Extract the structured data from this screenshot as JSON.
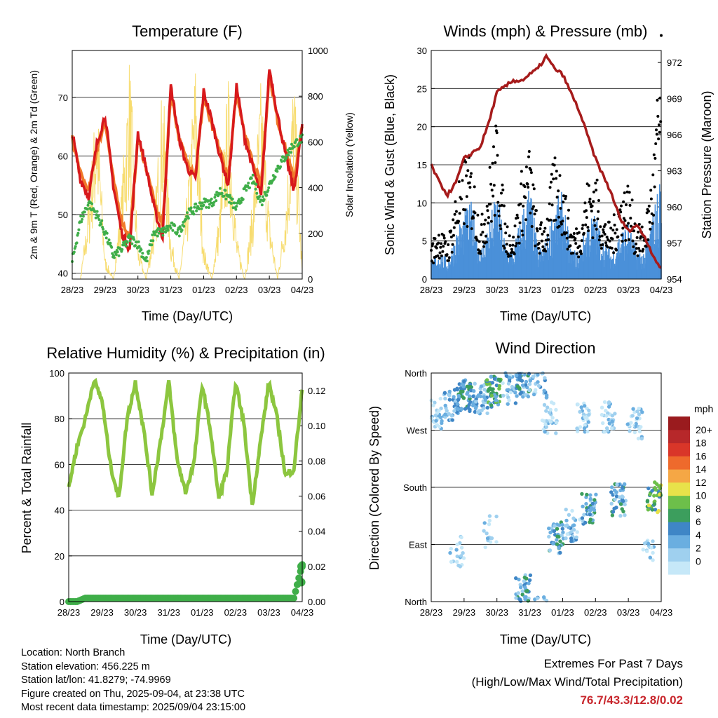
{
  "x_tick_labels": [
    "28/23",
    "29/23",
    "30/23",
    "31/23",
    "01/23",
    "02/23",
    "03/23",
    "04/23"
  ],
  "panels": {
    "temperature": {
      "title": "Temperature (F)",
      "xlabel": "Time (Day/UTC)",
      "ylabel": "2m & 9m T (Red, Orange) & 2m Td (Green)",
      "ylabel_right": "Solar Insolation (Yellow)",
      "yticks": [
        "40",
        "50",
        "60",
        "70"
      ],
      "yticks_right": [
        "0",
        "200",
        "400",
        "600",
        "800",
        "1000"
      ]
    },
    "winds": {
      "title": "Winds (mph) & Pressure (mb)",
      "xlabel": "Time (Day/UTC)",
      "ylabel": "Sonic Wind & Gust (Blue, Black)",
      "ylabel_right": "Station Pressure (Maroon)",
      "yticks": [
        "0",
        "5",
        "10",
        "15",
        "20",
        "25",
        "30"
      ],
      "yticks_right": [
        "954",
        "957",
        "960",
        "963",
        "966",
        "969",
        "972"
      ]
    },
    "humidity": {
      "title": "Relative Humidity (%) & Precipitation (in)",
      "xlabel": "Time (Day/UTC)",
      "ylabel": "Percent & Total Rainfall",
      "yticks": [
        "0",
        "20",
        "40",
        "60",
        "80",
        "100"
      ],
      "yticks_right": [
        "0.00",
        "0.02",
        "0.04",
        "0.06",
        "0.08",
        "0.10",
        "0.12"
      ]
    },
    "direction": {
      "title": "Wind Direction",
      "xlabel": "Time (Day/UTC)",
      "ylabel": "Direction (Colored By Speed)",
      "yticks": [
        "North",
        "East",
        "South",
        "West",
        "North"
      ],
      "legend_title": "mph",
      "legend_labels": [
        "0",
        "2",
        "4",
        "6",
        "8",
        "10",
        "12",
        "14",
        "16",
        "18",
        "20+"
      ]
    }
  },
  "colors": {
    "temp_2m": "#d7191c",
    "temp_9m": "#f07a2a",
    "dewpoint": "#3fae49",
    "solar": "#f7dc6f",
    "wind": "#4a90d9",
    "gust": "#000000",
    "pressure": "#a61b1b",
    "rh": "#8cc63f",
    "precip": "#3fae49",
    "legend_scale": [
      "#c6e8f8",
      "#9fd0ef",
      "#6aaee0",
      "#3f86c6",
      "#3c9e5d",
      "#6dbf4a",
      "#e8e24a",
      "#f5a745",
      "#ee6a2c",
      "#d93629",
      "#b7282a",
      "#9a1b1e"
    ]
  },
  "chart_data": [
    {
      "type": "line",
      "title": "Temperature (F)",
      "xlabel": "Time (Day/UTC)",
      "ylabel": "2m & 9m T (Red, Orange) & 2m Td (Green)",
      "y2label": "Solar Insolation (Yellow)",
      "x_ticks": [
        "28/23",
        "29/23",
        "30/23",
        "31/23",
        "01/23",
        "02/23",
        "03/23",
        "04/23"
      ],
      "x": [
        0,
        0.25,
        0.5,
        0.75,
        1,
        1.25,
        1.5,
        1.75,
        2,
        2.25,
        2.5,
        2.75,
        3,
        3.25,
        3.5,
        3.75,
        4,
        4.25,
        4.5,
        4.75,
        5,
        5.25,
        5.5,
        5.75,
        6,
        6.25,
        6.5,
        6.75,
        7
      ],
      "ylim": [
        39,
        78
      ],
      "y2lim": [
        0,
        1000
      ],
      "series": [
        {
          "values": [
            64,
            56,
            53,
            62,
            67,
            55,
            47,
            44,
            64,
            58,
            51,
            46,
            72,
            63,
            58,
            56,
            71,
            66,
            60,
            55,
            72,
            63,
            58,
            53,
            75,
            67,
            60,
            54,
            65
          ]
        },
        {
          "values": [
            63,
            57,
            54,
            61,
            66,
            56,
            49,
            46,
            63,
            58,
            52,
            48,
            71,
            63,
            59,
            57,
            70,
            65,
            61,
            56,
            71,
            64,
            59,
            55,
            74,
            66,
            61,
            56,
            65
          ]
        },
        {
          "values": [
            42,
            49,
            52,
            50,
            47,
            43,
            44,
            46,
            45,
            42,
            47,
            47,
            48,
            47,
            50,
            51,
            52,
            52,
            54,
            53,
            51,
            54,
            56,
            52,
            55,
            58,
            60,
            62,
            63
          ]
        },
        {
          "values": [
            0,
            0,
            350,
            850,
            100,
            0,
            400,
            1020,
            150,
            0,
            300,
            900,
            200,
            0,
            380,
            980,
            150,
            0,
            350,
            900,
            200,
            0,
            380,
            900,
            300,
            0,
            360,
            950,
            50
          ]
        }
      ]
    },
    {
      "type": "line",
      "title": "Winds (mph) & Pressure (mb)",
      "xlabel": "Time (Day/UTC)",
      "ylabel": "Sonic Wind & Gust (Blue, Black)",
      "y2label": "Station Pressure (Maroon)",
      "x_ticks": [
        "28/23",
        "29/23",
        "30/23",
        "31/23",
        "01/23",
        "02/23",
        "03/23",
        "04/23"
      ],
      "x": [
        0,
        0.25,
        0.5,
        0.75,
        1,
        1.25,
        1.5,
        1.75,
        2,
        2.25,
        2.5,
        2.75,
        3,
        3.25,
        3.5,
        3.75,
        4,
        4.25,
        4.5,
        4.75,
        5,
        5.25,
        5.5,
        5.75,
        6,
        6.25,
        6.5,
        6.75,
        7
      ],
      "ylim": [
        0,
        30
      ],
      "y2lim": [
        954,
        973
      ],
      "series": [
        {
          "values": [
            2,
            3,
            2,
            5,
            7,
            8,
            3,
            6,
            9,
            4,
            3,
            7,
            10,
            3,
            4,
            8,
            9,
            3,
            3,
            6,
            7,
            4,
            3,
            5,
            6,
            3,
            3,
            7,
            11
          ]
        },
        {
          "values": [
            4,
            6,
            4,
            10,
            14,
            13,
            6,
            12,
            18,
            7,
            5,
            12,
            15,
            6,
            7,
            14,
            12,
            6,
            6,
            11,
            12,
            7,
            6,
            10,
            11,
            6,
            6,
            13,
            27
          ]
        },
        {
          "values": [
            963.5,
            962,
            961,
            962,
            964,
            964.5,
            965,
            967,
            969.5,
            970,
            970.5,
            970.5,
            971,
            971.5,
            972.5,
            971.5,
            971,
            969.5,
            968,
            966,
            964,
            962.5,
            961,
            959,
            958,
            958.5,
            957.5,
            956,
            954.8
          ]
        }
      ]
    },
    {
      "type": "line",
      "title": "Relative Humidity (%) & Precipitation (in)",
      "xlabel": "Time (Day/UTC)",
      "ylabel": "Percent & Total Rainfall",
      "x_ticks": [
        "28/23",
        "29/23",
        "30/23",
        "31/23",
        "01/23",
        "02/23",
        "03/23",
        "04/23"
      ],
      "x": [
        0,
        0.25,
        0.5,
        0.75,
        1,
        1.25,
        1.5,
        1.75,
        2,
        2.25,
        2.5,
        2.75,
        3,
        3.25,
        3.5,
        3.75,
        4,
        4.25,
        4.5,
        4.75,
        5,
        5.25,
        5.5,
        5.75,
        6,
        6.25,
        6.5,
        6.75,
        7
      ],
      "ylim": [
        0,
        100
      ],
      "y2lim": [
        0,
        0.13
      ],
      "series": [
        {
          "values": [
            50,
            68,
            80,
            97,
            88,
            60,
            45,
            80,
            96,
            75,
            47,
            70,
            96,
            62,
            48,
            60,
            95,
            75,
            45,
            58,
            96,
            78,
            42,
            70,
            96,
            80,
            55,
            58,
            93
          ]
        },
        {
          "values": [
            0,
            0,
            0.002,
            0.002,
            0.002,
            0.002,
            0.002,
            0.002,
            0.002,
            0.002,
            0.002,
            0.002,
            0.002,
            0.002,
            0.002,
            0.002,
            0.002,
            0.002,
            0.002,
            0.002,
            0.002,
            0.002,
            0.002,
            0.002,
            0.002,
            0.002,
            0.002,
            0.002,
            0.021
          ]
        }
      ]
    },
    {
      "type": "scatter",
      "title": "Wind Direction",
      "xlabel": "Time (Day/UTC)",
      "ylabel": "Direction (Colored By Speed)",
      "x_ticks": [
        "28/23",
        "29/23",
        "30/23",
        "31/23",
        "01/23",
        "02/23",
        "03/23",
        "04/23"
      ],
      "y_ticks": [
        "North",
        "East",
        "South",
        "West",
        "North"
      ],
      "ylim": [
        0,
        360
      ],
      "colorbar": {
        "title": "mph",
        "labels": [
          "0",
          "2",
          "4",
          "6",
          "8",
          "10",
          "12",
          "14",
          "16",
          "18",
          "20+"
        ]
      },
      "clusters": [
        {
          "x": 0.1,
          "dir": 295,
          "speed": 3,
          "n": 40
        },
        {
          "x": 0.6,
          "dir": 310,
          "speed": 5,
          "n": 40
        },
        {
          "x": 1.0,
          "dir": 325,
          "speed": 7,
          "n": 50
        },
        {
          "x": 1.5,
          "dir": 320,
          "speed": 5,
          "n": 40
        },
        {
          "x": 1.9,
          "dir": 330,
          "speed": 8,
          "n": 50
        },
        {
          "x": 2.4,
          "dir": 335,
          "speed": 4,
          "n": 30
        },
        {
          "x": 2.8,
          "dir": 345,
          "speed": 6,
          "n": 40
        },
        {
          "x": 3.3,
          "dir": 345,
          "speed": 4,
          "n": 30
        },
        {
          "x": 2.8,
          "dir": 20,
          "speed": 6,
          "n": 40
        },
        {
          "x": 3.6,
          "dir": 290,
          "speed": 2,
          "n": 30
        },
        {
          "x": 3.8,
          "dir": 100,
          "speed": 6,
          "n": 40
        },
        {
          "x": 4.3,
          "dir": 120,
          "speed": 4,
          "n": 30
        },
        {
          "x": 4.6,
          "dir": 290,
          "speed": 2,
          "n": 30
        },
        {
          "x": 4.8,
          "dir": 145,
          "speed": 6,
          "n": 40
        },
        {
          "x": 5.4,
          "dir": 290,
          "speed": 3,
          "n": 30
        },
        {
          "x": 5.7,
          "dir": 160,
          "speed": 6,
          "n": 40
        },
        {
          "x": 6.2,
          "dir": 280,
          "speed": 3,
          "n": 30
        },
        {
          "x": 6.8,
          "dir": 165,
          "speed": 10,
          "n": 40
        },
        {
          "x": 0.8,
          "dir": 80,
          "speed": 2,
          "n": 20
        },
        {
          "x": 1.8,
          "dir": 110,
          "speed": 3,
          "n": 15
        },
        {
          "x": 6.6,
          "dir": 90,
          "speed": 2,
          "n": 15
        }
      ]
    }
  ],
  "info": {
    "location": "Location: North Branch",
    "elevation": "Station elevation: 456.225 m",
    "latlon": "Station lat/lon: 41.8279; -74.9969",
    "created": "Figure created on Thu, 2025-09-04, at 23:38 UTC",
    "recent": "Most recent data timestamp: 2025/09/04 23:15:00"
  },
  "extremes": {
    "line1": "Extremes For Past 7 Days",
    "line2": "(High/Low/Max Wind/Total Precipitation)",
    "values": "76.7/43.3/12.8/0.02"
  }
}
